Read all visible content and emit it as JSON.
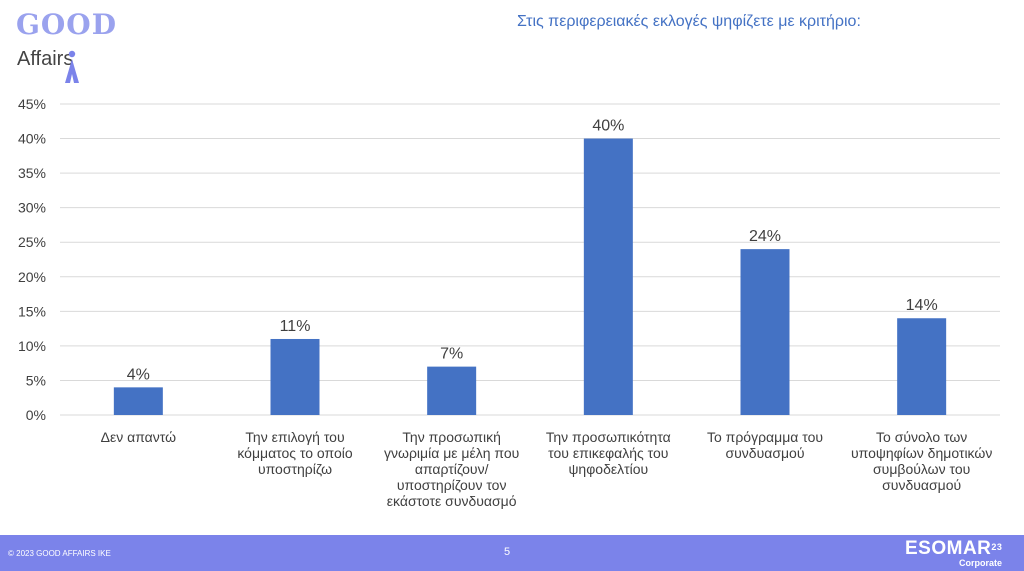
{
  "colors": {
    "brand": "#9aa2ee",
    "bar": "#4472c4",
    "title": "#4472c4",
    "footer": "#7b83ea",
    "grid": "#d9d9d9",
    "text": "#404040"
  },
  "logo": {
    "top": "GOOD",
    "bottom": "Affairs"
  },
  "footer": {
    "copyright": "© 2023 GOOD AFFAIRS IKE",
    "page_number": "5",
    "esomar": "ESOMAR",
    "esomar_sup": "23",
    "esomar_sub": "Corporate"
  },
  "chart_data": {
    "type": "bar",
    "title": "Στις περιφερειακές εκλογές ψηφίζετε με κριτήριο:",
    "categories": [
      [
        "Δεν απαντώ"
      ],
      [
        "Την επιλογή του",
        "κόμματος το οποίο",
        "υποστηρίζω"
      ],
      [
        "Την προσωπική",
        "γνωριμία με μέλη που",
        "απαρτίζουν/",
        "υποστηρίζουν τον",
        "εκάστοτε συνδυασμό"
      ],
      [
        "Την προσωπικότητα",
        "του επικεφαλής του",
        "ψηφοδελτίου"
      ],
      [
        "Το πρόγραμμα του",
        "συνδυασμού"
      ],
      [
        "Το σύνολο των",
        "υποψηφίων δημοτικών",
        "συμβούλων του",
        "συνδυασμού"
      ]
    ],
    "values": [
      4,
      11,
      7,
      40,
      24,
      14
    ],
    "value_labels": [
      "4%",
      "11%",
      "7%",
      "40%",
      "24%",
      "14%"
    ],
    "y_ticks": [
      "0%",
      "5%",
      "10%",
      "15%",
      "20%",
      "25%",
      "30%",
      "35%",
      "40%",
      "45%"
    ],
    "ylim": [
      0,
      45
    ],
    "grid": true
  }
}
